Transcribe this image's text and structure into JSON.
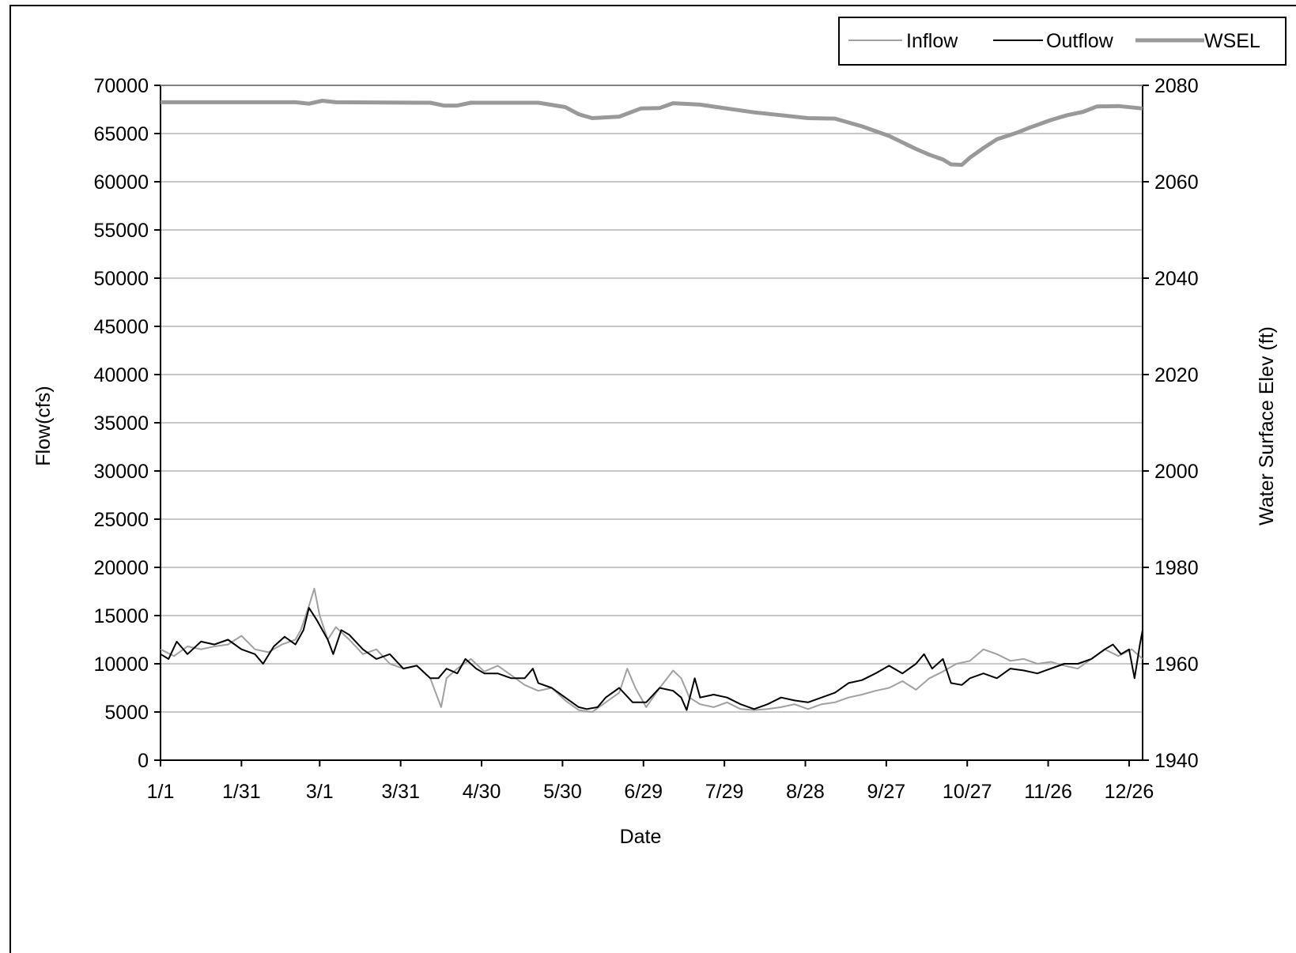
{
  "chart_data": {
    "type": "line",
    "xlabel": "Date",
    "ylabel_left": "Flow(cfs)",
    "ylabel_right": "Water Surface Elev (ft)",
    "x_tick_labels": [
      "1/1",
      "1/31",
      "3/1",
      "3/31",
      "4/30",
      "5/30",
      "6/29",
      "7/29",
      "8/28",
      "9/27",
      "10/27",
      "11/26",
      "12/26"
    ],
    "x_tick_days": [
      0,
      30,
      59,
      89,
      119,
      149,
      179,
      209,
      239,
      269,
      299,
      329,
      359
    ],
    "xlim_days": [
      0,
      364
    ],
    "ylim_left": [
      0,
      70000
    ],
    "yticks_left": [
      0,
      5000,
      10000,
      15000,
      20000,
      25000,
      30000,
      35000,
      40000,
      45000,
      50000,
      55000,
      60000,
      65000,
      70000
    ],
    "ylim_right": [
      1940,
      2080
    ],
    "yticks_right": [
      1940,
      1960,
      1980,
      2000,
      2020,
      2040,
      2060,
      2080
    ],
    "grid": "horizontal",
    "legend_position": "top-right",
    "series": [
      {
        "name": "Inflow",
        "axis": "left",
        "color": "#a0a0a0",
        "points": [
          [
            0,
            11500
          ],
          [
            5,
            10800
          ],
          [
            10,
            11800
          ],
          [
            15,
            11500
          ],
          [
            20,
            11800
          ],
          [
            25,
            12000
          ],
          [
            30,
            12900
          ],
          [
            35,
            11500
          ],
          [
            40,
            11200
          ],
          [
            45,
            12000
          ],
          [
            50,
            12500
          ],
          [
            52,
            13500
          ],
          [
            55,
            16000
          ],
          [
            57,
            17800
          ],
          [
            59,
            15000
          ],
          [
            62,
            12500
          ],
          [
            65,
            13800
          ],
          [
            70,
            12500
          ],
          [
            75,
            11000
          ],
          [
            80,
            11500
          ],
          [
            85,
            10000
          ],
          [
            90,
            9500
          ],
          [
            95,
            9800
          ],
          [
            100,
            8500
          ],
          [
            102,
            7000
          ],
          [
            104,
            5500
          ],
          [
            106,
            8500
          ],
          [
            110,
            9500
          ],
          [
            115,
            10500
          ],
          [
            120,
            9200
          ],
          [
            125,
            9800
          ],
          [
            130,
            8800
          ],
          [
            135,
            7800
          ],
          [
            140,
            7200
          ],
          [
            145,
            7500
          ],
          [
            150,
            6200
          ],
          [
            155,
            5200
          ],
          [
            160,
            5000
          ],
          [
            165,
            6000
          ],
          [
            170,
            7000
          ],
          [
            173,
            9500
          ],
          [
            176,
            7500
          ],
          [
            180,
            5500
          ],
          [
            185,
            7500
          ],
          [
            190,
            9300
          ],
          [
            193,
            8500
          ],
          [
            196,
            6500
          ],
          [
            200,
            5800
          ],
          [
            205,
            5500
          ],
          [
            210,
            6000
          ],
          [
            215,
            5300
          ],
          [
            220,
            5200
          ],
          [
            225,
            5300
          ],
          [
            230,
            5500
          ],
          [
            235,
            5800
          ],
          [
            240,
            5300
          ],
          [
            245,
            5800
          ],
          [
            250,
            6000
          ],
          [
            255,
            6500
          ],
          [
            260,
            6800
          ],
          [
            265,
            7200
          ],
          [
            270,
            7500
          ],
          [
            275,
            8200
          ],
          [
            280,
            7300
          ],
          [
            285,
            8500
          ],
          [
            290,
            9200
          ],
          [
            295,
            10000
          ],
          [
            300,
            10300
          ],
          [
            305,
            11500
          ],
          [
            310,
            11000
          ],
          [
            315,
            10300
          ],
          [
            320,
            10500
          ],
          [
            325,
            10000
          ],
          [
            330,
            10200
          ],
          [
            335,
            9800
          ],
          [
            340,
            9500
          ],
          [
            345,
            10500
          ],
          [
            350,
            11500
          ],
          [
            355,
            10800
          ],
          [
            360,
            11500
          ],
          [
            364,
            10500
          ]
        ]
      },
      {
        "name": "Outflow",
        "axis": "left",
        "color": "#000000",
        "points": [
          [
            0,
            11000
          ],
          [
            3,
            10500
          ],
          [
            6,
            12300
          ],
          [
            10,
            11000
          ],
          [
            15,
            12300
          ],
          [
            20,
            12000
          ],
          [
            25,
            12500
          ],
          [
            30,
            11500
          ],
          [
            35,
            11000
          ],
          [
            38,
            10000
          ],
          [
            42,
            11800
          ],
          [
            46,
            12800
          ],
          [
            50,
            12000
          ],
          [
            53,
            13500
          ],
          [
            55,
            15800
          ],
          [
            58,
            14500
          ],
          [
            62,
            12500
          ],
          [
            64,
            11000
          ],
          [
            67,
            13500
          ],
          [
            70,
            13000
          ],
          [
            75,
            11500
          ],
          [
            80,
            10500
          ],
          [
            85,
            11000
          ],
          [
            90,
            9500
          ],
          [
            95,
            9800
          ],
          [
            100,
            8500
          ],
          [
            103,
            8500
          ],
          [
            106,
            9500
          ],
          [
            110,
            9000
          ],
          [
            113,
            10500
          ],
          [
            117,
            9500
          ],
          [
            120,
            9000
          ],
          [
            125,
            9000
          ],
          [
            130,
            8500
          ],
          [
            135,
            8500
          ],
          [
            138,
            9500
          ],
          [
            140,
            8000
          ],
          [
            145,
            7500
          ],
          [
            150,
            6500
          ],
          [
            155,
            5500
          ],
          [
            158,
            5300
          ],
          [
            162,
            5500
          ],
          [
            165,
            6500
          ],
          [
            170,
            7500
          ],
          [
            175,
            6000
          ],
          [
            180,
            6000
          ],
          [
            185,
            7500
          ],
          [
            190,
            7200
          ],
          [
            193,
            6500
          ],
          [
            195,
            5200
          ],
          [
            198,
            8500
          ],
          [
            200,
            6500
          ],
          [
            205,
            6800
          ],
          [
            210,
            6500
          ],
          [
            215,
            5800
          ],
          [
            220,
            5300
          ],
          [
            225,
            5800
          ],
          [
            230,
            6500
          ],
          [
            235,
            6200
          ],
          [
            240,
            6000
          ],
          [
            245,
            6500
          ],
          [
            250,
            7000
          ],
          [
            255,
            8000
          ],
          [
            260,
            8300
          ],
          [
            265,
            9000
          ],
          [
            270,
            9800
          ],
          [
            275,
            9000
          ],
          [
            280,
            10000
          ],
          [
            283,
            11000
          ],
          [
            286,
            9500
          ],
          [
            290,
            10500
          ],
          [
            293,
            8000
          ],
          [
            297,
            7800
          ],
          [
            300,
            8500
          ],
          [
            305,
            9000
          ],
          [
            310,
            8500
          ],
          [
            315,
            9500
          ],
          [
            320,
            9300
          ],
          [
            325,
            9000
          ],
          [
            330,
            9500
          ],
          [
            335,
            10000
          ],
          [
            340,
            10000
          ],
          [
            345,
            10500
          ],
          [
            350,
            11500
          ],
          [
            353,
            12000
          ],
          [
            356,
            11000
          ],
          [
            359,
            11500
          ],
          [
            361,
            8500
          ],
          [
            363,
            12000
          ],
          [
            364,
            13500
          ]
        ]
      },
      {
        "name": "WSEL",
        "axis": "right",
        "color": "#999999",
        "points": [
          [
            0,
            2076.5
          ],
          [
            30,
            2076.5
          ],
          [
            50,
            2076.5
          ],
          [
            55,
            2076.2
          ],
          [
            60,
            2076.8
          ],
          [
            65,
            2076.5
          ],
          [
            100,
            2076.4
          ],
          [
            105,
            2075.8
          ],
          [
            110,
            2075.8
          ],
          [
            115,
            2076.4
          ],
          [
            140,
            2076.4
          ],
          [
            150,
            2075.5
          ],
          [
            155,
            2074.0
          ],
          [
            160,
            2073.2
          ],
          [
            170,
            2073.5
          ],
          [
            178,
            2075.2
          ],
          [
            185,
            2075.3
          ],
          [
            190,
            2076.3
          ],
          [
            200,
            2076.0
          ],
          [
            210,
            2075.2
          ],
          [
            220,
            2074.4
          ],
          [
            230,
            2073.8
          ],
          [
            240,
            2073.2
          ],
          [
            250,
            2073.1
          ],
          [
            260,
            2071.5
          ],
          [
            270,
            2069.5
          ],
          [
            280,
            2066.8
          ],
          [
            285,
            2065.6
          ],
          [
            290,
            2064.6
          ],
          [
            293,
            2063.6
          ],
          [
            297,
            2063.5
          ],
          [
            300,
            2065.0
          ],
          [
            305,
            2067.0
          ],
          [
            310,
            2068.8
          ],
          [
            318,
            2070.3
          ],
          [
            322,
            2071.2
          ],
          [
            330,
            2072.8
          ],
          [
            336,
            2073.8
          ],
          [
            342,
            2074.5
          ],
          [
            347,
            2075.6
          ],
          [
            355,
            2075.7
          ],
          [
            364,
            2075.2
          ]
        ]
      }
    ]
  }
}
